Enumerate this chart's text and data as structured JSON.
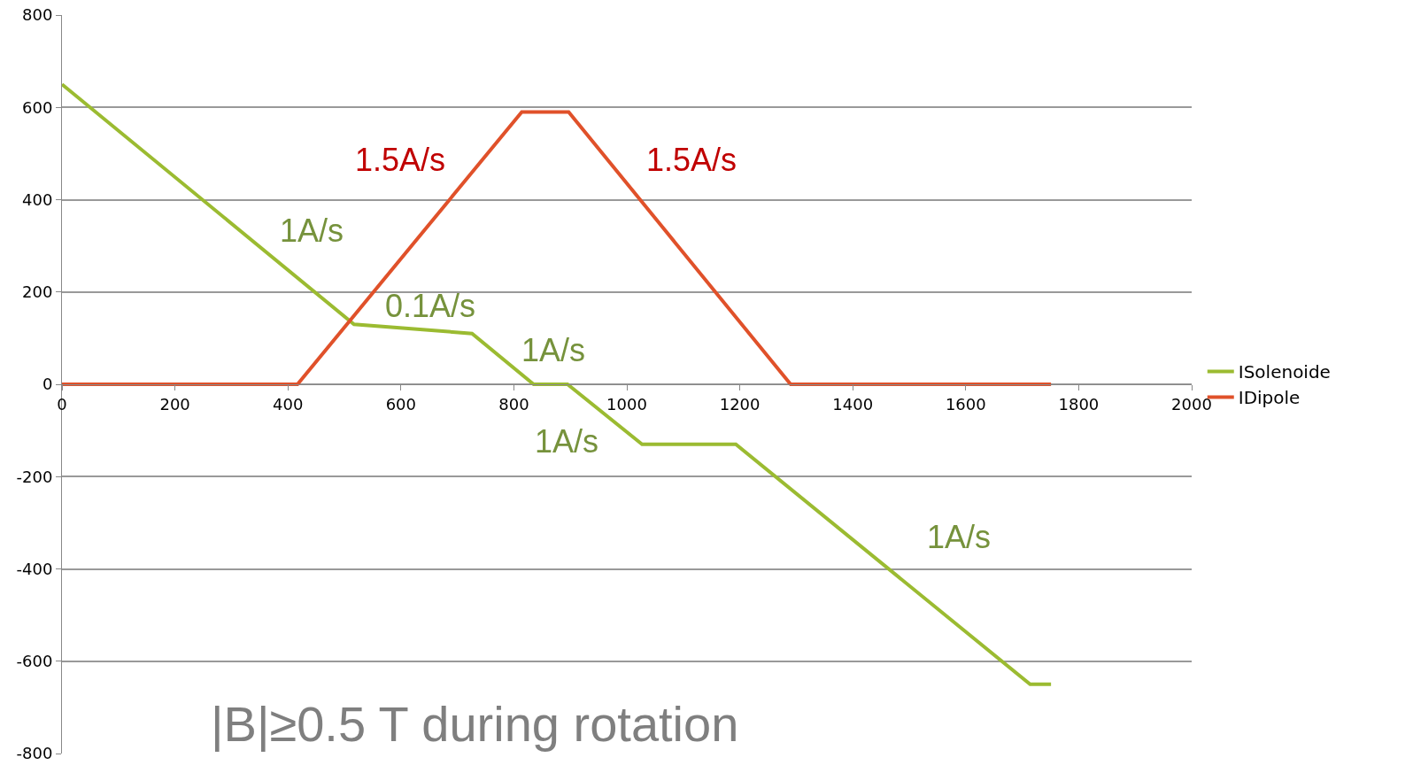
{
  "chart_data": {
    "type": "line",
    "series": [
      {
        "name": "ISolenoide",
        "color": "#9bbb31",
        "x": [
          0,
          517,
          726,
          835,
          895,
          1027,
          1193,
          1714,
          1751
        ],
        "values": [
          650,
          130,
          110,
          0,
          0,
          -130,
          -130,
          -650,
          -650
        ]
      },
      {
        "name": "IDipole",
        "color": "#e0512a",
        "x": [
          0,
          417,
          814,
          897,
          1290,
          1751
        ],
        "values": [
          0,
          0,
          590,
          590,
          0,
          0
        ]
      }
    ],
    "xlim": [
      0,
      2000
    ],
    "xticks": [
      0,
      200,
      400,
      600,
      800,
      1000,
      1200,
      1400,
      1600,
      1800,
      2000
    ],
    "ylim": [
      -800,
      800
    ],
    "yticks": [
      -800,
      -600,
      -400,
      -200,
      0,
      200,
      400,
      600,
      800
    ],
    "grid": "y",
    "legend": "right",
    "marker": "none",
    "line_style": "solid",
    "annotations": [
      "1.5A/s",
      "1.5A/s",
      "1A/s",
      "0.1A/s",
      "1A/s",
      "1A/s",
      "1A/s",
      "|B|≥0.5 T during rotation"
    ]
  }
}
